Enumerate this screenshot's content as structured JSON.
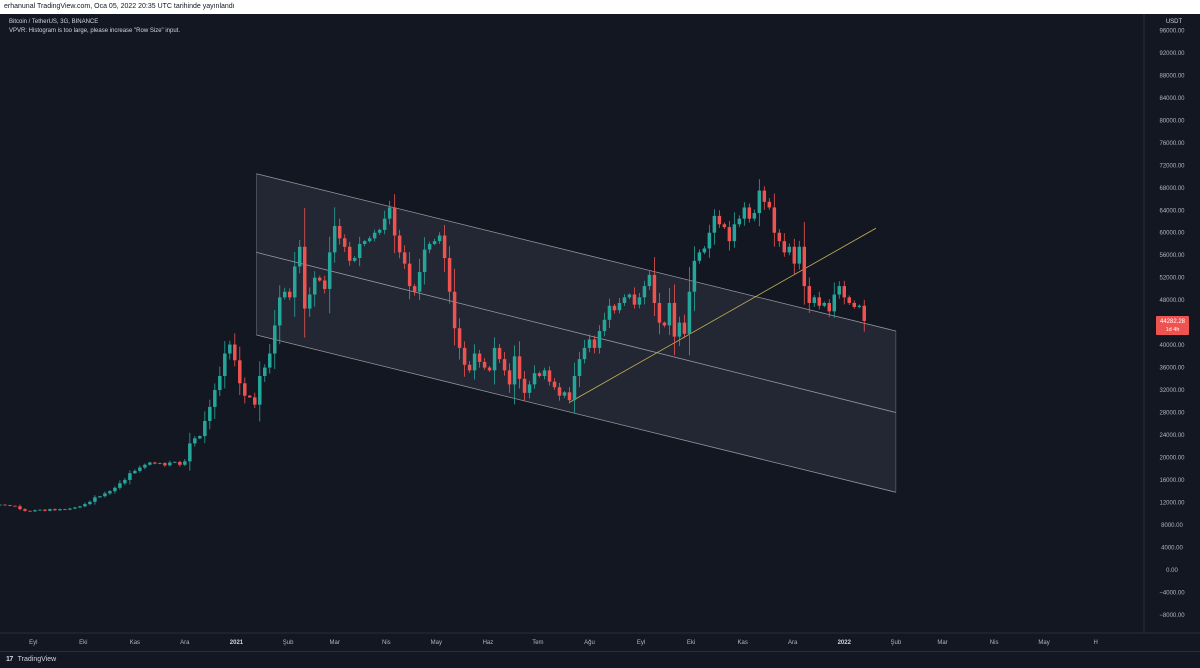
{
  "header": {
    "publish_line": "erhanunal TradingView.com, Oca 05, 2022 20:35 UTC tarihinde yayınlandı"
  },
  "legend": {
    "symbol_line": "Bitcoin / TetherUS, 3G, BINANCE",
    "indicator_line": "VPVR: Histogram is too large, please increase \"Row Size\" input."
  },
  "footer": {
    "brand": "TradingView"
  },
  "chart_data": {
    "type": "candlestick",
    "currency_label": "USDT",
    "price_axis": {
      "range": [
        -10000,
        100000
      ],
      "ticks": [
        "96000.00",
        "92000.00",
        "88000.00",
        "84000.00",
        "80000.00",
        "76000.00",
        "72000.00",
        "68000.00",
        "64000.00",
        "60000.00",
        "56000.00",
        "52000.00",
        "48000.00",
        "44000.00",
        "40000.00",
        "36000.00",
        "32000.00",
        "28000.00",
        "24000.00",
        "20000.00",
        "16000.00",
        "12000.00",
        "8000.00",
        "4000.00",
        "0.00",
        "−4000.00",
        "−8000.00"
      ]
    },
    "time_axis": {
      "range": [
        "2020-08-12",
        "2022-06-30"
      ],
      "ticks": [
        {
          "label": "Eyl",
          "date": "2020-09-01"
        },
        {
          "label": "Eki",
          "date": "2020-10-01"
        },
        {
          "label": "Kas",
          "date": "2020-11-01"
        },
        {
          "label": "Ara",
          "date": "2020-12-01"
        },
        {
          "label": "2021",
          "date": "2021-01-01"
        },
        {
          "label": "Şub",
          "date": "2021-02-01"
        },
        {
          "label": "Mar",
          "date": "2021-03-01"
        },
        {
          "label": "Nis",
          "date": "2021-04-01"
        },
        {
          "label": "May",
          "date": "2021-05-01"
        },
        {
          "label": "Haz",
          "date": "2021-06-01"
        },
        {
          "label": "Tem",
          "date": "2021-07-01"
        },
        {
          "label": "Ağu",
          "date": "2021-08-01"
        },
        {
          "label": "Eyl",
          "date": "2021-09-01"
        },
        {
          "label": "Eki",
          "date": "2021-10-01"
        },
        {
          "label": "Kas",
          "date": "2021-11-01"
        },
        {
          "label": "Ara",
          "date": "2021-12-01"
        },
        {
          "label": "2022",
          "date": "2022-01-01"
        },
        {
          "label": "Şub",
          "date": "2022-02-01"
        },
        {
          "label": "Mar",
          "date": "2022-03-01"
        },
        {
          "label": "Nis",
          "date": "2022-04-01"
        },
        {
          "label": "May",
          "date": "2022-05-01"
        },
        {
          "label": "H",
          "date": "2022-06-01"
        }
      ]
    },
    "last_price": {
      "value": "44282.28",
      "countdown": "1d 4h",
      "price": 44282.28
    },
    "colors": {
      "up": "#26a69a",
      "down": "#ef5350",
      "channel_line": "#b2b5be",
      "trend_line": "#c9b458",
      "channel_fill": "#2a2e39"
    },
    "channel": {
      "upper": [
        [
          "2021-01-13",
          70500
        ],
        [
          "2022-02-01",
          42500
        ]
      ],
      "middle": [
        [
          "2021-01-13",
          56500
        ],
        [
          "2022-02-01",
          28000
        ]
      ],
      "lower": [
        [
          "2021-01-13",
          41800
        ],
        [
          "2022-02-01",
          13800
        ]
      ]
    },
    "trend_line": [
      [
        "2021-07-20",
        29800
      ],
      [
        "2022-01-20",
        60800
      ]
    ],
    "candle_interval_days": 3,
    "series_closes": [
      11600,
      11500,
      11400,
      11300,
      10800,
      10500,
      10400,
      10600,
      10700,
      10500,
      10800,
      10600,
      10800,
      10700,
      10900,
      11100,
      11300,
      11700,
      12100,
      12900,
      13100,
      13600,
      14000,
      14600,
      15400,
      16000,
      17200,
      17600,
      18200,
      18700,
      19100,
      18900,
      19000,
      18600,
      19100,
      19200,
      18700,
      19300,
      22500,
      23400,
      23800,
      26500,
      29000,
      32000,
      34500,
      38500,
      40100,
      37300,
      33200,
      31000,
      30700,
      29400,
      34500,
      36000,
      38500,
      43500,
      48500,
      49500,
      48500,
      54000,
      57500,
      46500,
      49000,
      52000,
      51500,
      50000,
      56500,
      61200,
      59000,
      57500,
      55000,
      55500,
      58000,
      58500,
      59000,
      60000,
      60500,
      62500,
      64500,
      59500,
      56500,
      54500,
      50500,
      49500,
      53000,
      57000,
      58000,
      58500,
      59500,
      55500,
      49500,
      43000,
      39500,
      36500,
      35500,
      38500,
      37000,
      36000,
      35500,
      39500,
      37500,
      35500,
      33000,
      38000,
      34000,
      31500,
      33000,
      35000,
      34500,
      35500,
      33500,
      32500,
      31000,
      31600,
      30200,
      34500,
      37500,
      39500,
      41000,
      39500,
      42500,
      44500,
      47000,
      46200,
      47500,
      48500,
      49000,
      47200,
      48500,
      50500,
      52500,
      47500,
      44000,
      43500,
      47500,
      41500,
      44000,
      42000,
      49500,
      55000,
      56500,
      57200,
      60000,
      63000,
      61500,
      61000,
      58500,
      61500,
      62500,
      64500,
      62500,
      63500,
      67500,
      65500,
      64500,
      60000,
      58500,
      56500,
      57500,
      54500,
      57500,
      50500,
      47500,
      48500,
      47000,
      47500,
      46000,
      49000,
      50500,
      48500,
      47500,
      46800,
      47000,
      44300
    ]
  }
}
